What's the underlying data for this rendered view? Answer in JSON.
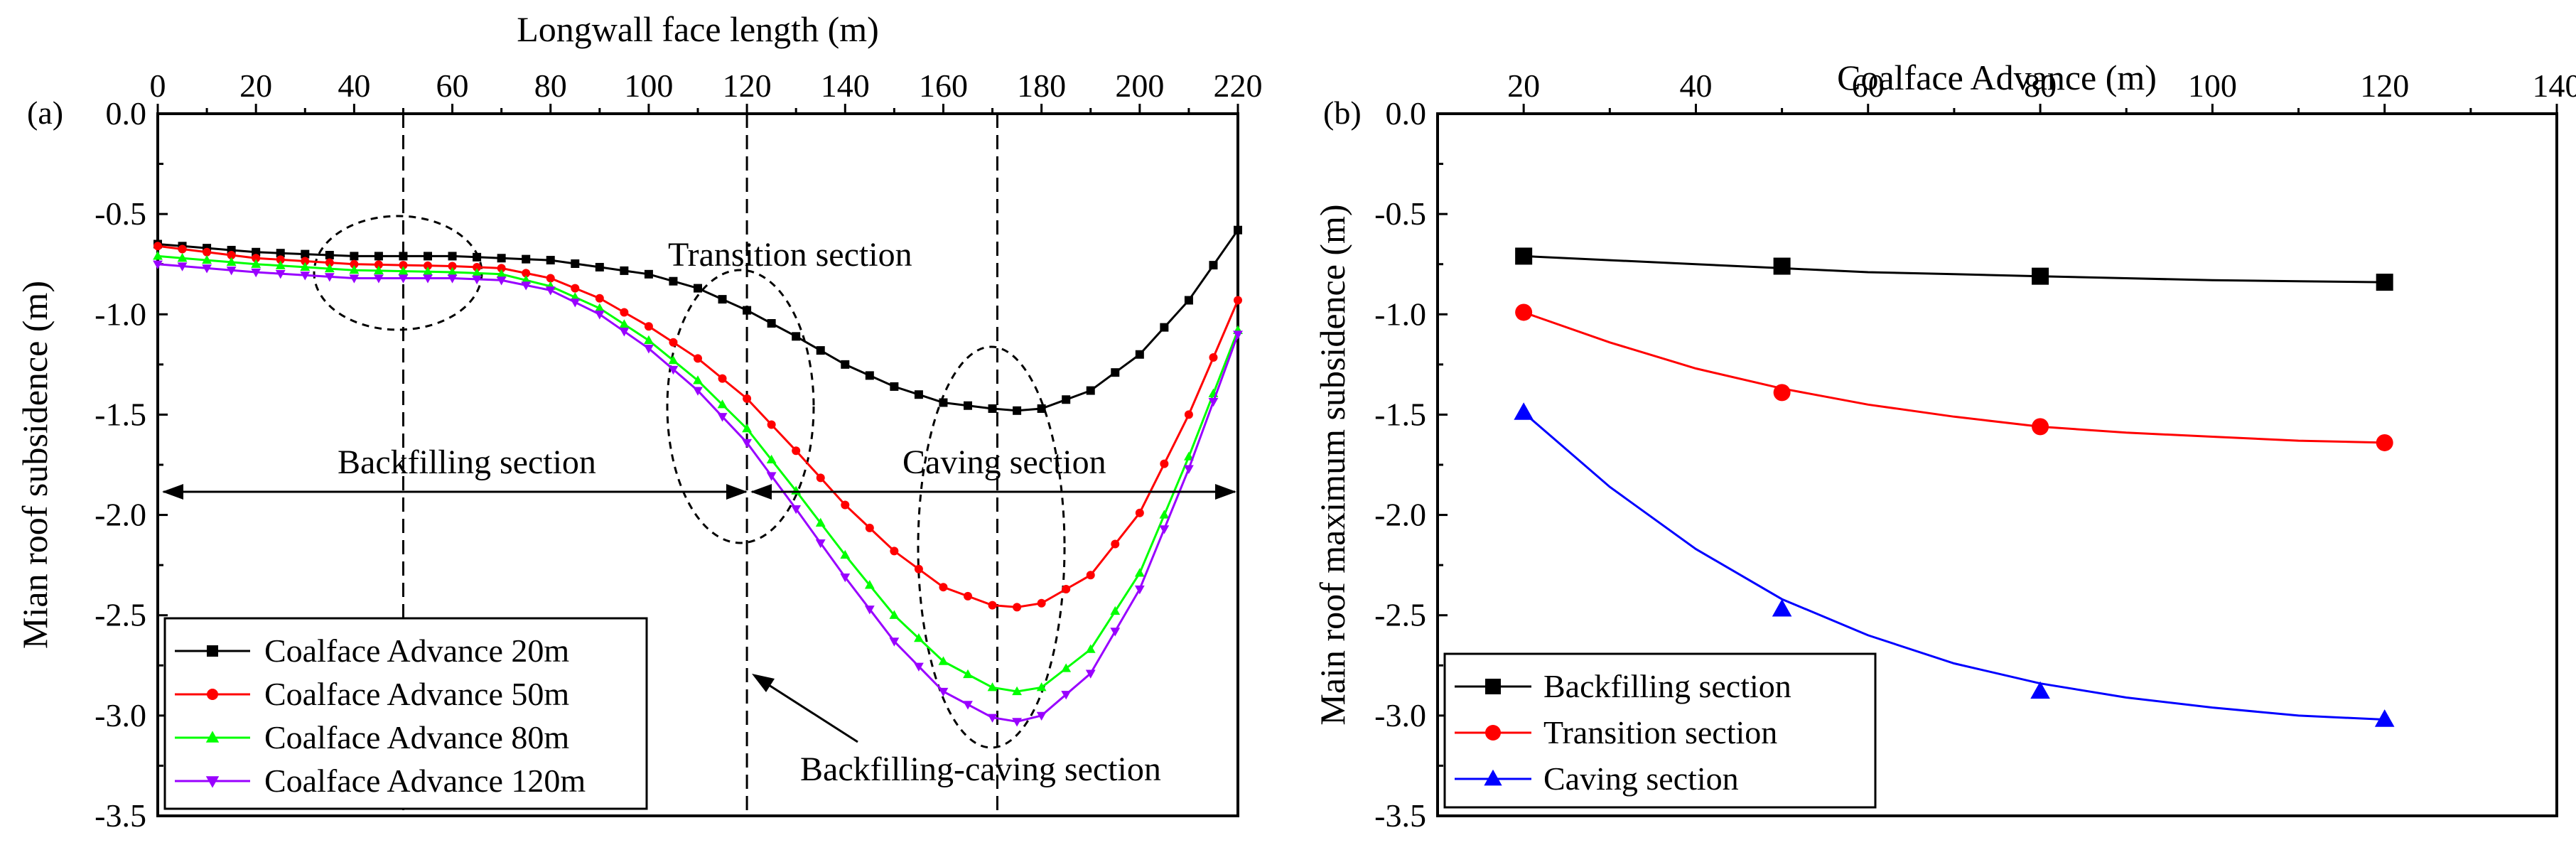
{
  "chart_data": [
    {
      "panel_label": "(a)",
      "type": "line",
      "xlabel": "Longwall face length (m)",
      "ylabel": "Mian roof subsidence (m)",
      "xlim": [
        0,
        220
      ],
      "ylim": [
        -3.5,
        0.0
      ],
      "x_ticks": [
        0,
        20,
        40,
        60,
        80,
        100,
        120,
        140,
        160,
        180,
        200,
        220
      ],
      "y_ticks": [
        "0.0",
        "-0.5",
        "-1.0",
        "-1.5",
        "-2.0",
        "-2.5",
        "-3.0",
        "-3.5"
      ],
      "x_axis_position": "top",
      "grid": false,
      "legend_position": "bottom-left",
      "series": [
        {
          "name": "Coalface Advance 20m",
          "color": "#000000",
          "marker": "square",
          "x": [
            0,
            20,
            40,
            60,
            80,
            100,
            110,
            120,
            130,
            140,
            150,
            160,
            170,
            175,
            180,
            190,
            200,
            210,
            220
          ],
          "y": [
            -0.65,
            -0.69,
            -0.71,
            -0.71,
            -0.73,
            -0.8,
            -0.87,
            -0.98,
            -1.11,
            -1.25,
            -1.36,
            -1.44,
            -1.47,
            -1.48,
            -1.47,
            -1.38,
            -1.2,
            -0.93,
            -0.58
          ]
        },
        {
          "name": "Coalface Advance 50m",
          "color": "#ff0000",
          "marker": "circle",
          "x": [
            0,
            20,
            40,
            60,
            70,
            80,
            90,
            100,
            110,
            120,
            130,
            140,
            150,
            160,
            170,
            175,
            180,
            190,
            200,
            210,
            220
          ],
          "y": [
            -0.66,
            -0.72,
            -0.75,
            -0.76,
            -0.77,
            -0.82,
            -0.92,
            -1.06,
            -1.22,
            -1.42,
            -1.68,
            -1.95,
            -2.18,
            -2.36,
            -2.45,
            -2.46,
            -2.44,
            -2.3,
            -1.99,
            -1.5,
            -0.93
          ]
        },
        {
          "name": "Coalface Advance 80m",
          "color": "#00ff00",
          "marker": "triangle-up",
          "x": [
            0,
            20,
            40,
            60,
            70,
            80,
            90,
            100,
            110,
            120,
            130,
            140,
            150,
            160,
            170,
            175,
            180,
            190,
            200,
            210,
            220
          ],
          "y": [
            -0.71,
            -0.75,
            -0.78,
            -0.79,
            -0.8,
            -0.86,
            -0.97,
            -1.13,
            -1.33,
            -1.57,
            -1.88,
            -2.2,
            -2.5,
            -2.73,
            -2.86,
            -2.88,
            -2.86,
            -2.67,
            -2.29,
            -1.71,
            -1.08
          ]
        },
        {
          "name": "Coalface Advance 120m",
          "color": "#9900ff",
          "marker": "triangle-down",
          "x": [
            0,
            20,
            40,
            60,
            70,
            80,
            90,
            100,
            110,
            120,
            130,
            140,
            150,
            160,
            170,
            175,
            180,
            190,
            200,
            210,
            220
          ],
          "y": [
            -0.75,
            -0.79,
            -0.82,
            -0.82,
            -0.83,
            -0.88,
            -1.0,
            -1.17,
            -1.38,
            -1.64,
            -1.97,
            -2.31,
            -2.63,
            -2.88,
            -3.01,
            -3.03,
            -3.0,
            -2.79,
            -2.37,
            -1.77,
            -1.1
          ]
        }
      ],
      "annotations": {
        "transition": "Transition section",
        "backfilling": "Backfilling section",
        "caving": "Caving section",
        "backfilling_caving": "Backfilling-caving section"
      },
      "vertical_lines_x": [
        50,
        120,
        171
      ]
    },
    {
      "panel_label": "(b)",
      "type": "line",
      "xlabel": "Coalface Advance (m)",
      "ylabel": "Main roof maximum subsidence (m)",
      "xlim": [
        10,
        140
      ],
      "ylim": [
        -3.5,
        0.0
      ],
      "x_ticks": [
        20,
        40,
        60,
        80,
        100,
        120,
        140
      ],
      "y_ticks": [
        "0.0",
        "-0.5",
        "-1.0",
        "-1.5",
        "-2.0",
        "-2.5",
        "-3.0",
        "-3.5"
      ],
      "x_axis_position": "top",
      "grid": false,
      "legend_position": "bottom-left",
      "series": [
        {
          "name": "Backfilling section",
          "color": "#000000",
          "marker": "square",
          "x": [
            20,
            50,
            80,
            120
          ],
          "y": [
            -0.71,
            -0.76,
            -0.81,
            -0.84
          ],
          "fit": [
            -0.71,
            -0.73,
            -0.75,
            -0.77,
            -0.79,
            -0.8,
            -0.81,
            -0.82,
            -0.83,
            -0.835,
            -0.84
          ]
        },
        {
          "name": "Transition section",
          "color": "#ff0000",
          "marker": "circle",
          "x": [
            20,
            50,
            80,
            120
          ],
          "y": [
            -0.99,
            -1.39,
            -1.56,
            -1.64
          ],
          "fit": [
            -0.99,
            -1.14,
            -1.27,
            -1.37,
            -1.45,
            -1.51,
            -1.56,
            -1.59,
            -1.61,
            -1.63,
            -1.64
          ]
        },
        {
          "name": "Caving section",
          "color": "#0000ff",
          "marker": "triangle-up",
          "x": [
            20,
            50,
            80,
            120
          ],
          "y": [
            -1.49,
            -2.47,
            -2.88,
            -3.02
          ],
          "fit": [
            -1.49,
            -1.86,
            -2.17,
            -2.42,
            -2.6,
            -2.74,
            -2.84,
            -2.91,
            -2.96,
            -3.0,
            -3.02
          ]
        }
      ]
    }
  ]
}
